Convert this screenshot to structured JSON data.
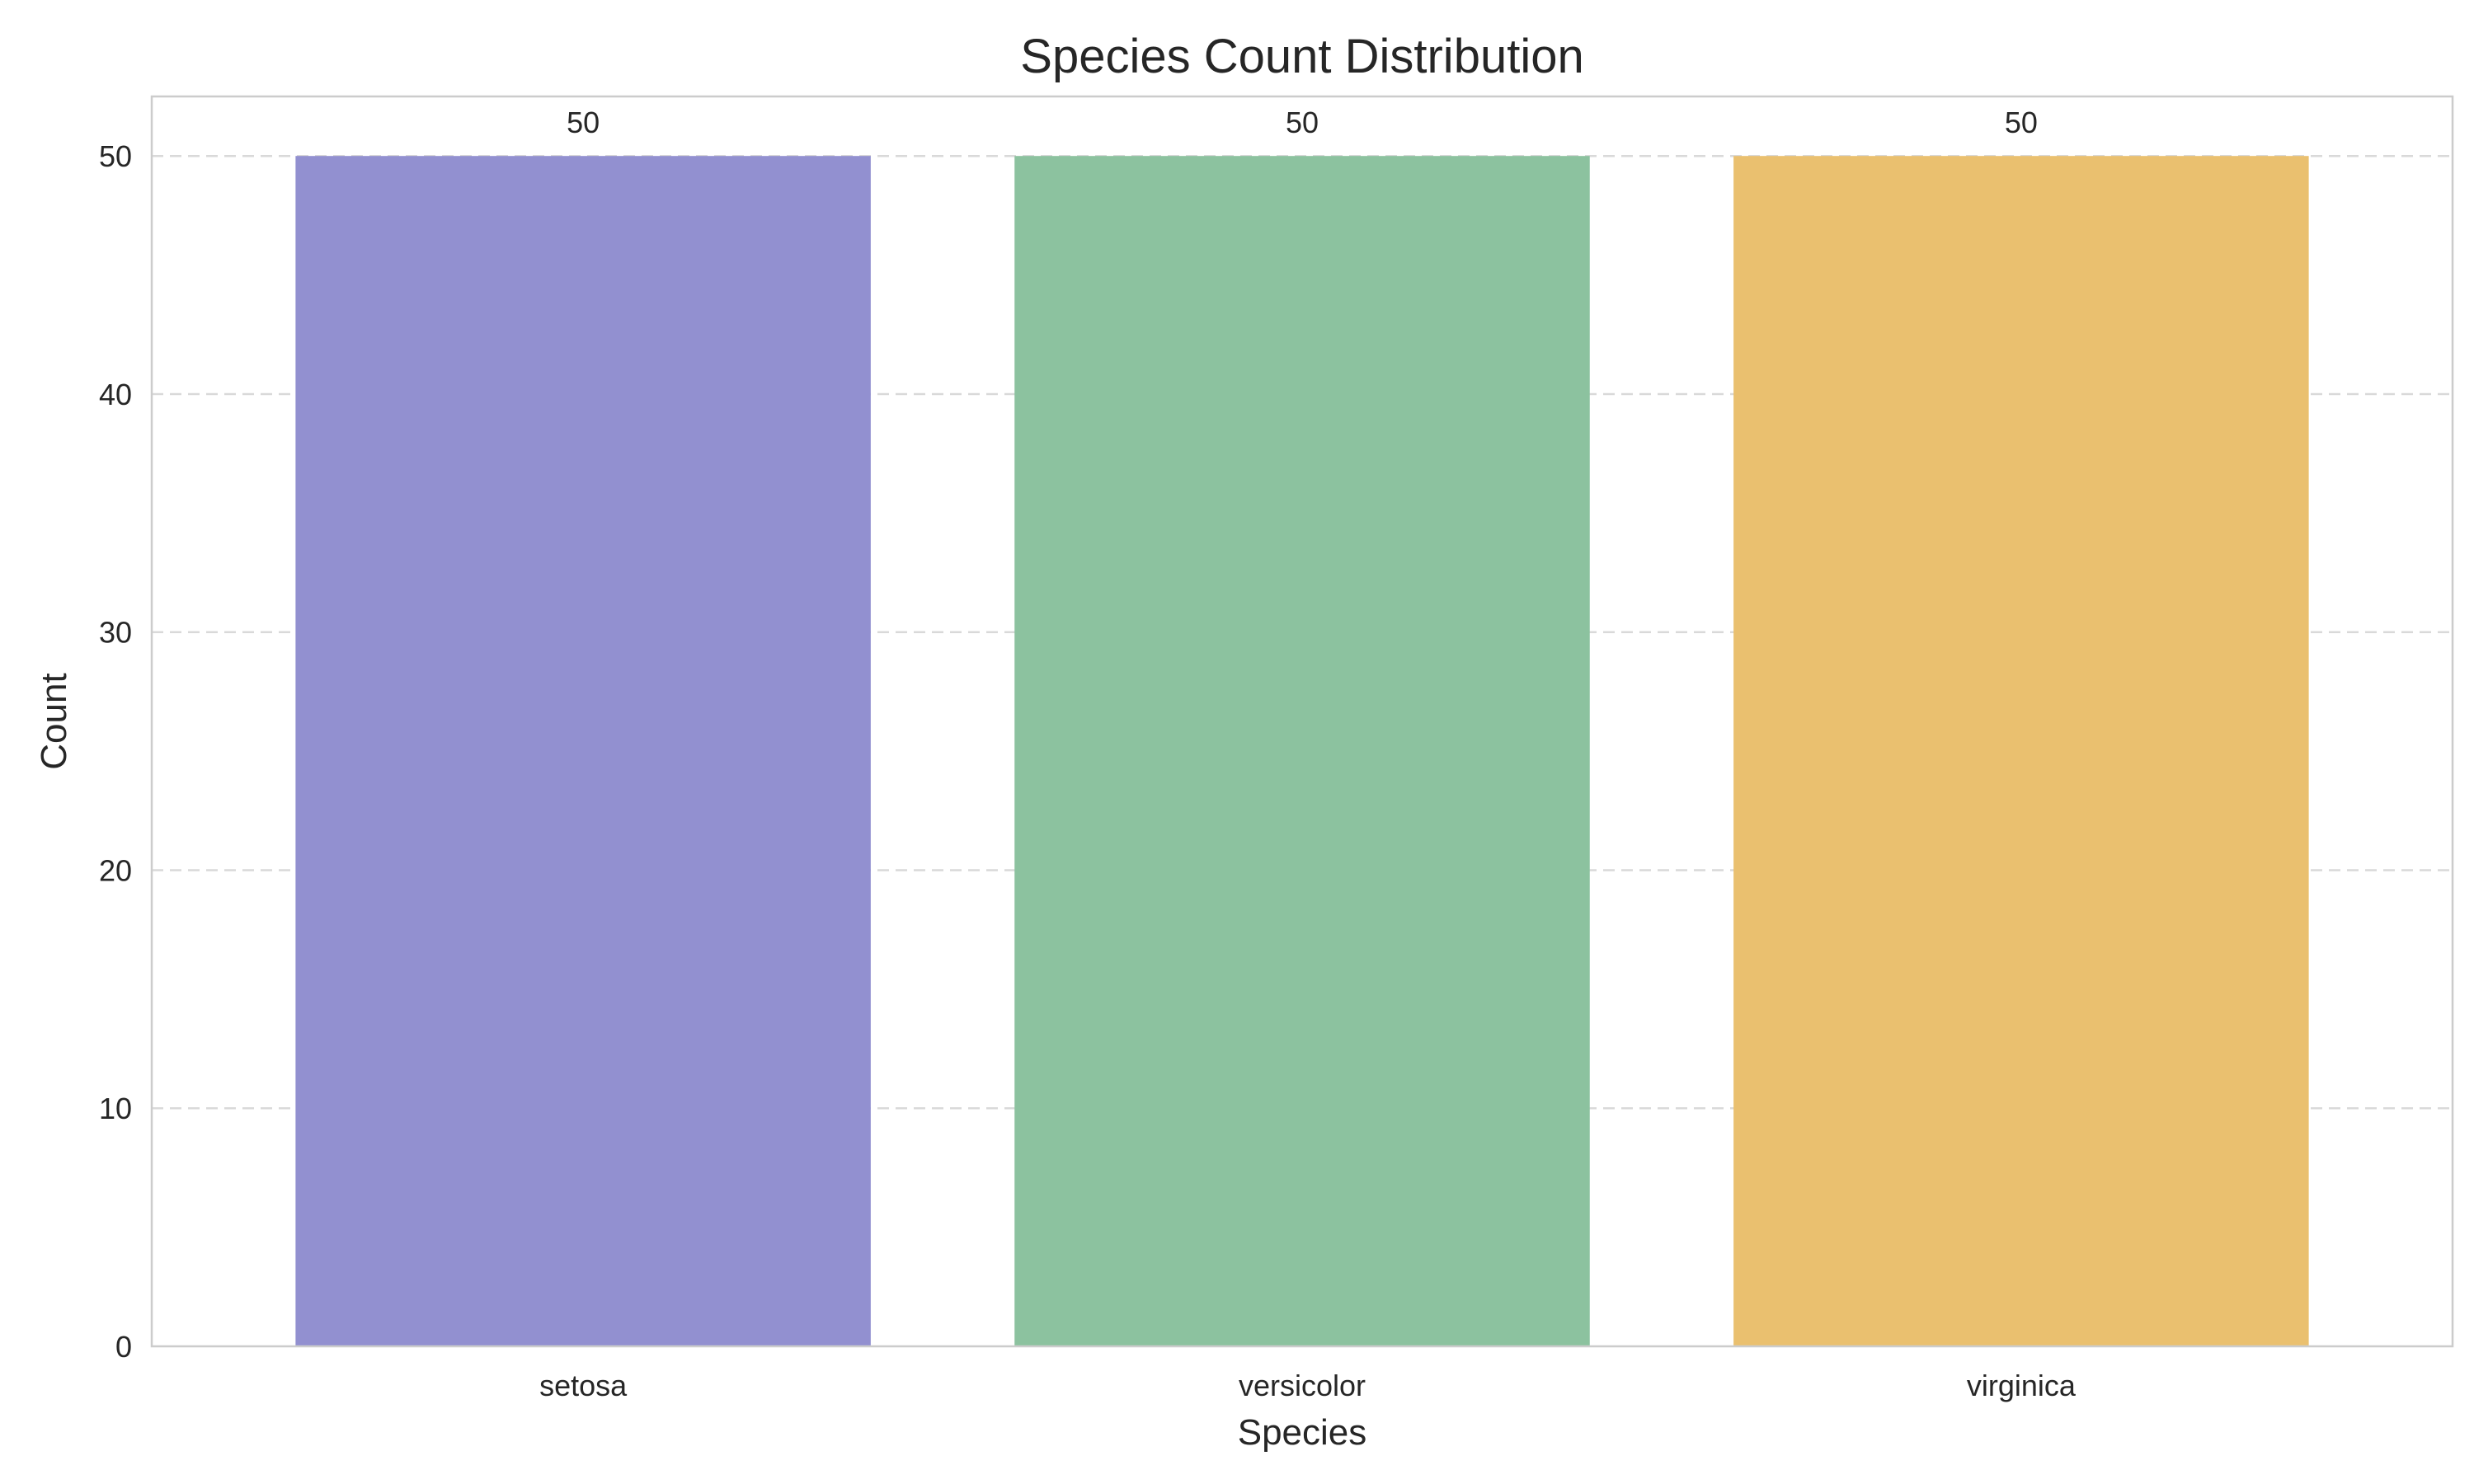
{
  "chart_data": {
    "type": "bar",
    "title": "Species Count Distribution",
    "xlabel": "Species",
    "ylabel": "Count",
    "categories": [
      "setosa",
      "versicolor",
      "virginica"
    ],
    "values": [
      50,
      50,
      50
    ],
    "data_labels": [
      "50",
      "50",
      "50"
    ],
    "colors": [
      "#9290d0",
      "#8cc29f",
      "#eac06f"
    ],
    "ylim": [
      0,
      52.5
    ],
    "yticks": [
      0,
      10,
      20,
      30,
      40,
      50
    ],
    "ytick_labels": [
      "0",
      "10",
      "20",
      "30",
      "40",
      "50"
    ],
    "grid": "y",
    "grid_style": "dashed"
  }
}
